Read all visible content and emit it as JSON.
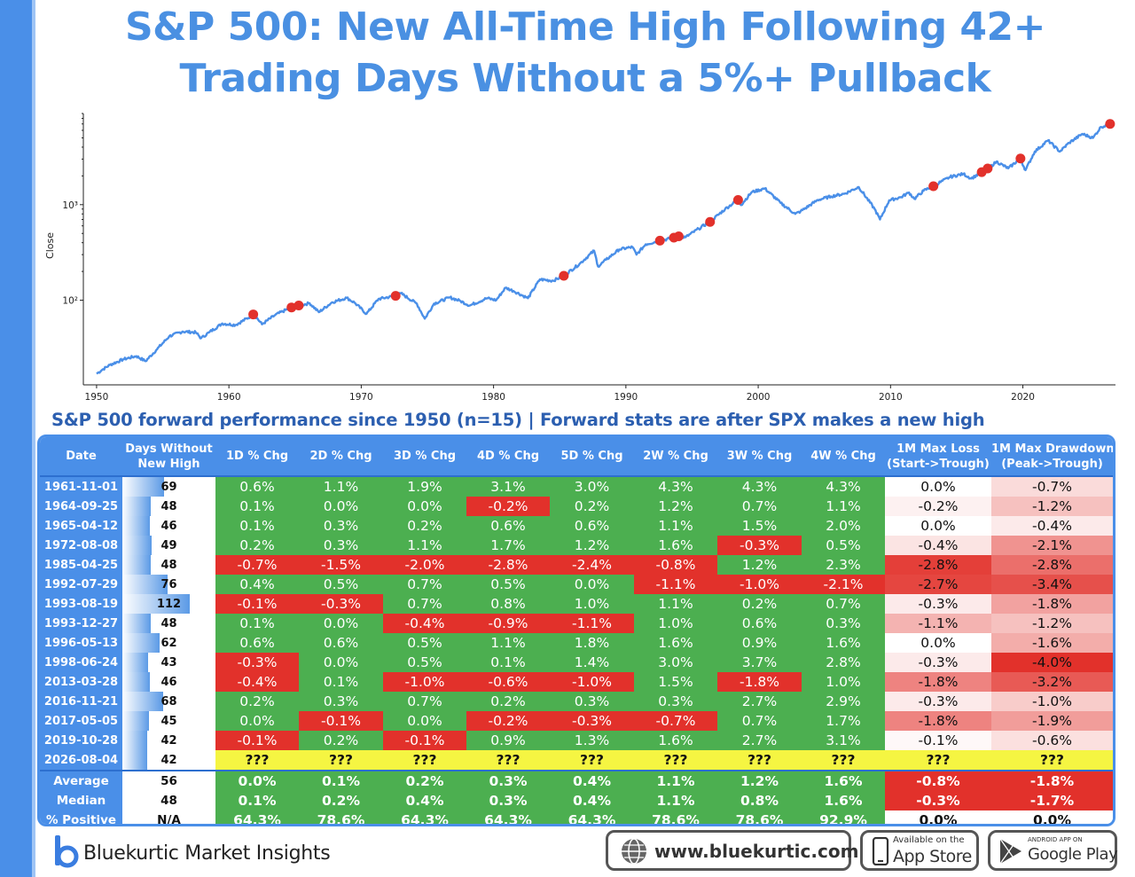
{
  "title": {
    "line1": "S&P 500: New All-Time High Following 42+",
    "line2": "Trading Days Without a 5%+ Pullback"
  },
  "colors": {
    "accent": "#4a8fe8",
    "title": "#4a90e2",
    "line": "#4a8fe8",
    "marker": "#e2312b",
    "positive_cell": "#4caf50",
    "negative_cell": "#e2312b",
    "pending_cell": "#f5f542"
  },
  "chart_data": {
    "type": "line",
    "ylabel": "Close",
    "xlabel": "",
    "y_scale": "log",
    "ylim": [
      13,
      9000
    ],
    "xlim": [
      1949,
      2027
    ],
    "x_ticks": [
      1950,
      1960,
      1970,
      1980,
      1990,
      2000,
      2010,
      2020
    ],
    "y_ticks": [
      {
        "value": 100,
        "label": "10²"
      },
      {
        "value": 1000,
        "label": "10³"
      }
    ],
    "grid": false,
    "series": [
      {
        "points": [
          [
            1950.0,
            17
          ],
          [
            1950.5,
            19
          ],
          [
            1951.0,
            21
          ],
          [
            1952.0,
            24
          ],
          [
            1953.0,
            26
          ],
          [
            1953.7,
            23
          ],
          [
            1954.5,
            30
          ],
          [
            1955.5,
            42
          ],
          [
            1956.5,
            47
          ],
          [
            1957.5,
            46
          ],
          [
            1957.9,
            40
          ],
          [
            1958.5,
            46
          ],
          [
            1959.5,
            57
          ],
          [
            1960.5,
            55
          ],
          [
            1961.9,
            71
          ],
          [
            1962.5,
            56
          ],
          [
            1963.5,
            70
          ],
          [
            1964.7,
            84
          ],
          [
            1965.3,
            88
          ],
          [
            1966.1,
            93
          ],
          [
            1966.8,
            75
          ],
          [
            1967.8,
            95
          ],
          [
            1968.9,
            106
          ],
          [
            1969.5,
            94
          ],
          [
            1970.4,
            72
          ],
          [
            1971.3,
            103
          ],
          [
            1972.6,
            111
          ],
          [
            1973.0,
            118
          ],
          [
            1974.2,
            92
          ],
          [
            1974.8,
            64
          ],
          [
            1975.5,
            92
          ],
          [
            1976.7,
            107
          ],
          [
            1977.5,
            98
          ],
          [
            1978.2,
            88
          ],
          [
            1979.5,
            105
          ],
          [
            1980.2,
            100
          ],
          [
            1980.9,
            135
          ],
          [
            1981.5,
            125
          ],
          [
            1982.6,
            105
          ],
          [
            1983.5,
            165
          ],
          [
            1984.5,
            160
          ],
          [
            1985.3,
            180
          ],
          [
            1986.5,
            240
          ],
          [
            1987.6,
            330
          ],
          [
            1987.9,
            225
          ],
          [
            1988.5,
            265
          ],
          [
            1989.5,
            340
          ],
          [
            1990.5,
            360
          ],
          [
            1990.8,
            300
          ],
          [
            1991.5,
            385
          ],
          [
            1992.6,
            420
          ],
          [
            1993.6,
            450
          ],
          [
            1993.98,
            466
          ],
          [
            1994.5,
            455
          ],
          [
            1995.5,
            560
          ],
          [
            1996.4,
            670
          ],
          [
            1997.5,
            900
          ],
          [
            1998.5,
            1130
          ],
          [
            1998.7,
            990
          ],
          [
            1999.5,
            1350
          ],
          [
            2000.5,
            1480
          ],
          [
            2001.7,
            1040
          ],
          [
            2002.8,
            800
          ],
          [
            2003.2,
            850
          ],
          [
            2004.5,
            1120
          ],
          [
            2005.5,
            1220
          ],
          [
            2006.5,
            1300
          ],
          [
            2007.6,
            1530
          ],
          [
            2008.8,
            900
          ],
          [
            2009.2,
            700
          ],
          [
            2009.9,
            1110
          ],
          [
            2010.8,
            1200
          ],
          [
            2011.4,
            1340
          ],
          [
            2011.8,
            1150
          ],
          [
            2012.5,
            1400
          ],
          [
            2013.2,
            1560
          ],
          [
            2014.5,
            1950
          ],
          [
            2015.5,
            2100
          ],
          [
            2016.1,
            1880
          ],
          [
            2016.9,
            2190
          ],
          [
            2017.4,
            2400
          ],
          [
            2018.0,
            2820
          ],
          [
            2018.9,
            2400
          ],
          [
            2019.8,
            3040
          ],
          [
            2020.2,
            2300
          ],
          [
            2020.9,
            3600
          ],
          [
            2021.9,
            4700
          ],
          [
            2022.8,
            3600
          ],
          [
            2023.5,
            4450
          ],
          [
            2024.5,
            5500
          ],
          [
            2025.3,
            5000
          ],
          [
            2025.9,
            6500
          ],
          [
            2026.6,
            7000
          ]
        ]
      }
    ],
    "markers": [
      {
        "x": 1961.84,
        "y": 71
      },
      {
        "x": 1964.73,
        "y": 84
      },
      {
        "x": 1965.28,
        "y": 88
      },
      {
        "x": 1972.6,
        "y": 111
      },
      {
        "x": 1985.31,
        "y": 180
      },
      {
        "x": 1992.57,
        "y": 420
      },
      {
        "x": 1993.63,
        "y": 452
      },
      {
        "x": 1993.99,
        "y": 466
      },
      {
        "x": 1996.36,
        "y": 660
      },
      {
        "x": 1998.48,
        "y": 1120
      },
      {
        "x": 2013.24,
        "y": 1560
      },
      {
        "x": 2016.89,
        "y": 2190
      },
      {
        "x": 2017.34,
        "y": 2390
      },
      {
        "x": 2019.82,
        "y": 3040
      },
      {
        "x": 2026.59,
        "y": 7000
      }
    ]
  },
  "table_heading": "S&P 500 forward performance since 1950 (n=15) | Forward stats are after SPX makes a new high",
  "table": {
    "columns": [
      "Date",
      "Days Without New High",
      "1D % Chg",
      "2D % Chg",
      "3D % Chg",
      "4D % Chg",
      "5D % Chg",
      "2W % Chg",
      "3W % Chg",
      "4W % Chg",
      "1M Max Loss (Start->Trough)",
      "1M Max Drawdown (Peak->Trough)"
    ],
    "column_lines": [
      [
        "Date"
      ],
      [
        "Days Without",
        "New High"
      ],
      [
        "1D % Chg"
      ],
      [
        "2D % Chg"
      ],
      [
        "3D % Chg"
      ],
      [
        "4D % Chg"
      ],
      [
        "5D % Chg"
      ],
      [
        "2W % Chg"
      ],
      [
        "3W % Chg"
      ],
      [
        "4W % Chg"
      ],
      [
        "1M Max Loss",
        "(Start->Trough)"
      ],
      [
        "1M Max Drawdown",
        "(Peak->Trough)"
      ]
    ],
    "days_max": 112,
    "rows": [
      {
        "date": "1961-11-01",
        "days": 69,
        "cells": [
          "0.6%",
          "1.1%",
          "1.9%",
          "3.1%",
          "3.0%",
          "4.3%",
          "4.3%",
          "4.3%"
        ],
        "max_loss": "0.0%",
        "max_dd": "-0.7%"
      },
      {
        "date": "1964-09-25",
        "days": 48,
        "cells": [
          "0.1%",
          "0.0%",
          "0.0%",
          "-0.2%",
          "0.2%",
          "1.2%",
          "0.7%",
          "1.1%"
        ],
        "max_loss": "-0.2%",
        "max_dd": "-1.2%"
      },
      {
        "date": "1965-04-12",
        "days": 46,
        "cells": [
          "0.1%",
          "0.3%",
          "0.2%",
          "0.6%",
          "0.6%",
          "1.1%",
          "1.5%",
          "2.0%"
        ],
        "max_loss": "0.0%",
        "max_dd": "-0.4%"
      },
      {
        "date": "1972-08-08",
        "days": 49,
        "cells": [
          "0.2%",
          "0.3%",
          "1.1%",
          "1.7%",
          "1.2%",
          "1.6%",
          "-0.3%",
          "0.5%"
        ],
        "max_loss": "-0.4%",
        "max_dd": "-2.1%"
      },
      {
        "date": "1985-04-25",
        "days": 48,
        "cells": [
          "-0.7%",
          "-1.5%",
          "-2.0%",
          "-2.8%",
          "-2.4%",
          "-0.8%",
          "1.2%",
          "2.3%"
        ],
        "max_loss": "-2.8%",
        "max_dd": "-2.8%"
      },
      {
        "date": "1992-07-29",
        "days": 76,
        "cells": [
          "0.4%",
          "0.5%",
          "0.7%",
          "0.5%",
          "0.0%",
          "-1.1%",
          "-1.0%",
          "-2.1%"
        ],
        "max_loss": "-2.7%",
        "max_dd": "-3.4%"
      },
      {
        "date": "1993-08-19",
        "days": 112,
        "cells": [
          "-0.1%",
          "-0.3%",
          "0.7%",
          "0.8%",
          "1.0%",
          "1.1%",
          "0.2%",
          "0.7%"
        ],
        "max_loss": "-0.3%",
        "max_dd": "-1.8%"
      },
      {
        "date": "1993-12-27",
        "days": 48,
        "cells": [
          "0.1%",
          "0.0%",
          "-0.4%",
          "-0.9%",
          "-1.1%",
          "1.0%",
          "0.6%",
          "0.3%"
        ],
        "max_loss": "-1.1%",
        "max_dd": "-1.2%"
      },
      {
        "date": "1996-05-13",
        "days": 62,
        "cells": [
          "0.6%",
          "0.6%",
          "0.5%",
          "1.1%",
          "1.8%",
          "1.6%",
          "0.9%",
          "1.6%"
        ],
        "max_loss": "0.0%",
        "max_dd": "-1.6%"
      },
      {
        "date": "1998-06-24",
        "days": 43,
        "cells": [
          "-0.3%",
          "0.0%",
          "0.5%",
          "0.1%",
          "1.4%",
          "3.0%",
          "3.7%",
          "2.8%"
        ],
        "max_loss": "-0.3%",
        "max_dd": "-4.0%"
      },
      {
        "date": "2013-03-28",
        "days": 46,
        "cells": [
          "-0.4%",
          "0.1%",
          "-1.0%",
          "-0.6%",
          "-1.0%",
          "1.5%",
          "-1.8%",
          "1.0%"
        ],
        "max_loss": "-1.8%",
        "max_dd": "-3.2%"
      },
      {
        "date": "2016-11-21",
        "days": 68,
        "cells": [
          "0.2%",
          "0.3%",
          "0.7%",
          "0.2%",
          "0.3%",
          "0.3%",
          "2.7%",
          "2.9%"
        ],
        "max_loss": "-0.3%",
        "max_dd": "-1.0%"
      },
      {
        "date": "2017-05-05",
        "days": 45,
        "cells": [
          "0.0%",
          "-0.1%",
          "0.0%",
          "-0.2%",
          "-0.3%",
          "-0.7%",
          "0.7%",
          "1.7%"
        ],
        "max_loss": "-1.8%",
        "max_dd": "-1.9%"
      },
      {
        "date": "2019-10-28",
        "days": 42,
        "cells": [
          "-0.1%",
          "0.2%",
          "-0.1%",
          "0.9%",
          "1.3%",
          "1.6%",
          "2.7%",
          "3.1%"
        ],
        "max_loss": "-0.1%",
        "max_dd": "-0.6%"
      },
      {
        "date": "2026-08-04",
        "days": 42,
        "cells": [
          "???",
          "???",
          "???",
          "???",
          "???",
          "???",
          "???",
          "???"
        ],
        "max_loss": "???",
        "max_dd": "???",
        "pending": true
      }
    ],
    "summary": [
      {
        "label": "Average",
        "days": "56",
        "cells": [
          "0.0%",
          "0.1%",
          "0.2%",
          "0.3%",
          "0.4%",
          "1.1%",
          "1.2%",
          "1.6%"
        ],
        "max_loss": "-0.8%",
        "max_dd": "-1.8%"
      },
      {
        "label": "Median",
        "days": "48",
        "cells": [
          "0.1%",
          "0.2%",
          "0.4%",
          "0.3%",
          "0.4%",
          "1.1%",
          "0.8%",
          "1.6%"
        ],
        "max_loss": "-0.3%",
        "max_dd": "-1.7%"
      },
      {
        "label": "% Positive",
        "days": "N/A",
        "cells": [
          "64.3%",
          "78.6%",
          "64.3%",
          "64.3%",
          "64.3%",
          "78.6%",
          "78.6%",
          "92.9%"
        ],
        "max_loss": "0.0%",
        "max_dd": "0.0%"
      }
    ]
  },
  "footer": {
    "brand": "Bluekurtic Market Insights",
    "website": "www.bluekurtic.com",
    "app_store_small": "Available on the",
    "app_store": "App Store",
    "play_small": "ANDROID APP ON",
    "play": "Google Play"
  }
}
